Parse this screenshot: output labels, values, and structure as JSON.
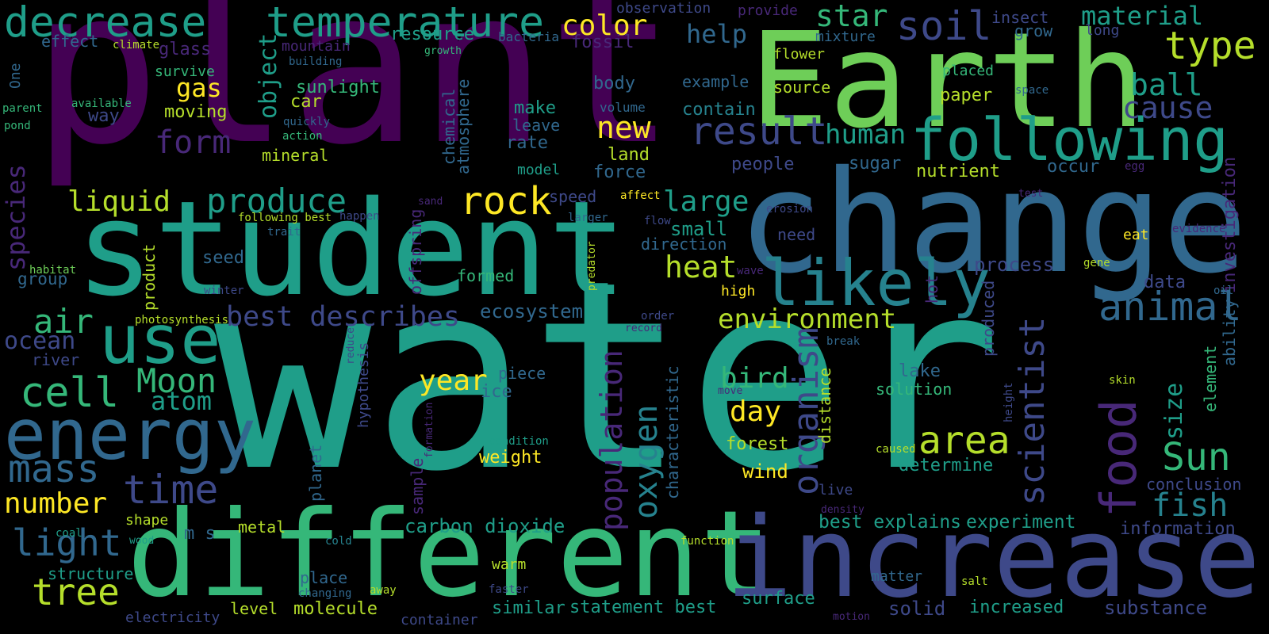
{
  "palette": {
    "background": "#000000",
    "p0": "#440154",
    "p1": "#482878",
    "p2": "#3e4989",
    "p3": "#31688e",
    "p4": "#26828e",
    "p5": "#1f9e89",
    "p6": "#35b779",
    "p7": "#6ece58",
    "p8": "#b5de2b",
    "p9": "#fde725"
  },
  "words": [
    {
      "text": "water",
      "color": "p5"
    },
    {
      "text": "plant",
      "color": "p0"
    },
    {
      "text": "student",
      "color": "p5"
    },
    {
      "text": "change",
      "color": "p3"
    },
    {
      "text": "Earth",
      "color": "p7"
    },
    {
      "text": "different",
      "color": "p6"
    },
    {
      "text": "increase",
      "color": "p2"
    },
    {
      "text": "following",
      "color": "p5"
    },
    {
      "text": "likely",
      "color": "p4"
    },
    {
      "text": "decrease",
      "color": "p5"
    },
    {
      "text": "temperature",
      "color": "p5"
    },
    {
      "text": "energy",
      "color": "p3"
    },
    {
      "text": "use",
      "color": "p5"
    },
    {
      "text": "soil",
      "color": "p2"
    },
    {
      "text": "food",
      "color": "p1"
    },
    {
      "text": "scientist",
      "color": "p2"
    },
    {
      "text": "type",
      "color": "p8"
    },
    {
      "text": "cell",
      "color": "p6"
    },
    {
      "text": "organism",
      "color": "p2"
    },
    {
      "text": "rock",
      "color": "p9"
    },
    {
      "text": "animal",
      "color": "p3"
    },
    {
      "text": "result",
      "color": "p2"
    },
    {
      "text": "area",
      "color": "p8"
    },
    {
      "text": "produce",
      "color": "p5"
    },
    {
      "text": "mass",
      "color": "p3"
    },
    {
      "text": "time",
      "color": "p2"
    },
    {
      "text": "tree",
      "color": "p8"
    },
    {
      "text": "light",
      "color": "p3"
    },
    {
      "text": "Moon",
      "color": "p6"
    },
    {
      "text": "oxygen",
      "color": "p4"
    },
    {
      "text": "population",
      "color": "p1"
    },
    {
      "text": "Sun",
      "color": "p6"
    },
    {
      "text": "air",
      "color": "p6"
    },
    {
      "text": "fish",
      "color": "p4"
    },
    {
      "text": "star",
      "color": "p6"
    },
    {
      "text": "form",
      "color": "p1"
    },
    {
      "text": "ball",
      "color": "p5"
    },
    {
      "text": "cause",
      "color": "p2"
    },
    {
      "text": "liquid",
      "color": "p8"
    },
    {
      "text": "best describes",
      "color": "p2"
    },
    {
      "text": "heat",
      "color": "p8"
    },
    {
      "text": "number",
      "color": "p9"
    },
    {
      "text": "color",
      "color": "p9"
    },
    {
      "text": "new",
      "color": "p9"
    },
    {
      "text": "large",
      "color": "p5"
    },
    {
      "text": "human",
      "color": "p5"
    },
    {
      "text": "environment",
      "color": "p8"
    },
    {
      "text": "bird",
      "color": "p6"
    },
    {
      "text": "day",
      "color": "p9"
    },
    {
      "text": "year",
      "color": "p9"
    },
    {
      "text": "species",
      "color": "p1"
    },
    {
      "text": "material",
      "color": "p5"
    },
    {
      "text": "help",
      "color": "p3"
    },
    {
      "text": "gas",
      "color": "p9"
    },
    {
      "text": "object",
      "color": "p5"
    },
    {
      "text": "atom",
      "color": "p5"
    },
    {
      "text": "ocean",
      "color": "p2"
    },
    {
      "text": "size",
      "color": "p5"
    },
    {
      "text": "carbon dioxide",
      "color": "p5"
    },
    {
      "text": "best explains",
      "color": "p5"
    },
    {
      "text": "experiment",
      "color": "p5"
    },
    {
      "text": "information",
      "color": "p2"
    },
    {
      "text": "substance",
      "color": "p2"
    },
    {
      "text": "increased",
      "color": "p5"
    },
    {
      "text": "solid",
      "color": "p2"
    },
    {
      "text": "molecule",
      "color": "p8"
    },
    {
      "text": "statement best",
      "color": "p5"
    },
    {
      "text": "similar",
      "color": "p5"
    },
    {
      "text": "surface",
      "color": "p5"
    },
    {
      "text": "level",
      "color": "p8"
    },
    {
      "text": "metal",
      "color": "p8"
    },
    {
      "text": "structure",
      "color": "p5"
    },
    {
      "text": "group",
      "color": "p3"
    },
    {
      "text": "seed",
      "color": "p3"
    },
    {
      "text": "small",
      "color": "p5"
    },
    {
      "text": "direction",
      "color": "p3"
    },
    {
      "text": "process",
      "color": "p2"
    },
    {
      "text": "data",
      "color": "p2"
    },
    {
      "text": "investigation",
      "color": "p1"
    },
    {
      "text": "ability",
      "color": "p3"
    },
    {
      "text": "element",
      "color": "p6"
    },
    {
      "text": "conclusion",
      "color": "p2"
    },
    {
      "text": "determine",
      "color": "p5"
    },
    {
      "text": "solution",
      "color": "p6"
    },
    {
      "text": "lake",
      "color": "p3"
    },
    {
      "text": "distance",
      "color": "p8"
    },
    {
      "text": "forest",
      "color": "p8"
    },
    {
      "text": "wind",
      "color": "p9"
    },
    {
      "text": "weight",
      "color": "p9"
    },
    {
      "text": "ice",
      "color": "p3"
    },
    {
      "text": "piece",
      "color": "p3"
    },
    {
      "text": "ecosystem",
      "color": "p3"
    },
    {
      "text": "sample",
      "color": "p1"
    },
    {
      "text": "planet",
      "color": "p3"
    },
    {
      "text": "characteristic",
      "color": "p3"
    },
    {
      "text": "chemical",
      "color": "p3"
    },
    {
      "text": "atmosphere",
      "color": "p3"
    },
    {
      "text": "sunlight",
      "color": "p6"
    },
    {
      "text": "resource",
      "color": "p5"
    },
    {
      "text": "car",
      "color": "p8"
    },
    {
      "text": "mineral",
      "color": "p8"
    },
    {
      "text": "moving",
      "color": "p8"
    },
    {
      "text": "survive",
      "color": "p6"
    },
    {
      "text": "glass",
      "color": "p1"
    },
    {
      "text": "mountain",
      "color": "p1"
    },
    {
      "text": "effect",
      "color": "p3"
    },
    {
      "text": "way",
      "color": "p2"
    },
    {
      "text": "river",
      "color": "p2"
    },
    {
      "text": "product",
      "color": "p8"
    },
    {
      "text": "offspring",
      "color": "p1"
    },
    {
      "text": "formed",
      "color": "p6"
    },
    {
      "text": "speed",
      "color": "p2"
    },
    {
      "text": "force",
      "color": "p3"
    },
    {
      "text": "land",
      "color": "p8"
    },
    {
      "text": "body",
      "color": "p3"
    },
    {
      "text": "rate",
      "color": "p3"
    },
    {
      "text": "model",
      "color": "p5"
    },
    {
      "text": "make",
      "color": "p5"
    },
    {
      "text": "leave",
      "color": "p3"
    },
    {
      "text": "volume",
      "color": "p3"
    },
    {
      "text": "fossil",
      "color": "p1"
    },
    {
      "text": "bacteria",
      "color": "p3"
    },
    {
      "text": "observation",
      "color": "p2"
    },
    {
      "text": "provide",
      "color": "p1"
    },
    {
      "text": "example",
      "color": "p3"
    },
    {
      "text": "contain",
      "color": "p4"
    },
    {
      "text": "source",
      "color": "p8"
    },
    {
      "text": "flower",
      "color": "p8"
    },
    {
      "text": "mixture",
      "color": "p3"
    },
    {
      "text": "insect",
      "color": "p2"
    },
    {
      "text": "grow",
      "color": "p3"
    },
    {
      "text": "long",
      "color": "p2"
    },
    {
      "text": "placed",
      "color": "p6"
    },
    {
      "text": "paper",
      "color": "p8"
    },
    {
      "text": "space",
      "color": "p3"
    },
    {
      "text": "people",
      "color": "p2"
    },
    {
      "text": "sugar",
      "color": "p3"
    },
    {
      "text": "nutrient",
      "color": "p8"
    },
    {
      "text": "occur",
      "color": "p3"
    },
    {
      "text": "test",
      "color": "p1"
    },
    {
      "text": "egg",
      "color": "p1"
    },
    {
      "text": "need",
      "color": "p2"
    },
    {
      "text": "erosion",
      "color": "p2"
    },
    {
      "text": "high",
      "color": "p9"
    },
    {
      "text": "wave",
      "color": "p1"
    },
    {
      "text": "hot",
      "color": "p1"
    },
    {
      "text": "produced",
      "color": "p2"
    },
    {
      "text": "eat",
      "color": "p9"
    },
    {
      "text": "evidence",
      "color": "p1"
    },
    {
      "text": "gene",
      "color": "p8"
    },
    {
      "text": "oil",
      "color": "p3"
    },
    {
      "text": "break",
      "color": "p3"
    },
    {
      "text": "skin",
      "color": "p8"
    },
    {
      "text": "height",
      "color": "p2"
    },
    {
      "text": "caused",
      "color": "p8"
    },
    {
      "text": "live",
      "color": "p2"
    },
    {
      "text": "density",
      "color": "p1"
    },
    {
      "text": "matter",
      "color": "p3"
    },
    {
      "text": "salt",
      "color": "p8"
    },
    {
      "text": "motion",
      "color": "p1"
    },
    {
      "text": "faster",
      "color": "p2"
    },
    {
      "text": "away",
      "color": "p8"
    },
    {
      "text": "warm",
      "color": "p8"
    },
    {
      "text": "function",
      "color": "p8"
    },
    {
      "text": "place",
      "color": "p3"
    },
    {
      "text": "changing",
      "color": "p3"
    },
    {
      "text": "container",
      "color": "p2"
    },
    {
      "text": "electricity",
      "color": "p2"
    },
    {
      "text": "cold",
      "color": "p4"
    },
    {
      "text": "m s",
      "color": "p3"
    },
    {
      "text": "shape",
      "color": "p8"
    },
    {
      "text": "wood",
      "color": "p5"
    },
    {
      "text": "coal",
      "color": "p5"
    },
    {
      "text": "climate",
      "color": "p8"
    },
    {
      "text": "building",
      "color": "p3"
    },
    {
      "text": "growth",
      "color": "p6"
    },
    {
      "text": "One",
      "color": "p3"
    },
    {
      "text": "parent",
      "color": "p6"
    },
    {
      "text": "available",
      "color": "p6"
    },
    {
      "text": "pond",
      "color": "p6"
    },
    {
      "text": "quickly",
      "color": "p3"
    },
    {
      "text": "action",
      "color": "p6"
    },
    {
      "text": "habitat",
      "color": "p7"
    },
    {
      "text": "photosynthesis",
      "color": "p8"
    },
    {
      "text": "winter",
      "color": "p2"
    },
    {
      "text": "trait",
      "color": "p3"
    },
    {
      "text": "following best",
      "color": "p8"
    },
    {
      "text": "happen",
      "color": "p2"
    },
    {
      "text": "sand",
      "color": "p1"
    },
    {
      "text": "affect",
      "color": "p9"
    },
    {
      "text": "larger",
      "color": "p3"
    },
    {
      "text": "flow",
      "color": "p2"
    },
    {
      "text": "predator",
      "color": "p8"
    },
    {
      "text": "order",
      "color": "p2"
    },
    {
      "text": "record",
      "color": "p1"
    },
    {
      "text": "reduce",
      "color": "p2"
    },
    {
      "text": "hypothesis",
      "color": "p2"
    },
    {
      "text": "formation",
      "color": "p1"
    },
    {
      "text": "condition",
      "color": "p5"
    },
    {
      "text": "move",
      "color": "p1"
    }
  ]
}
